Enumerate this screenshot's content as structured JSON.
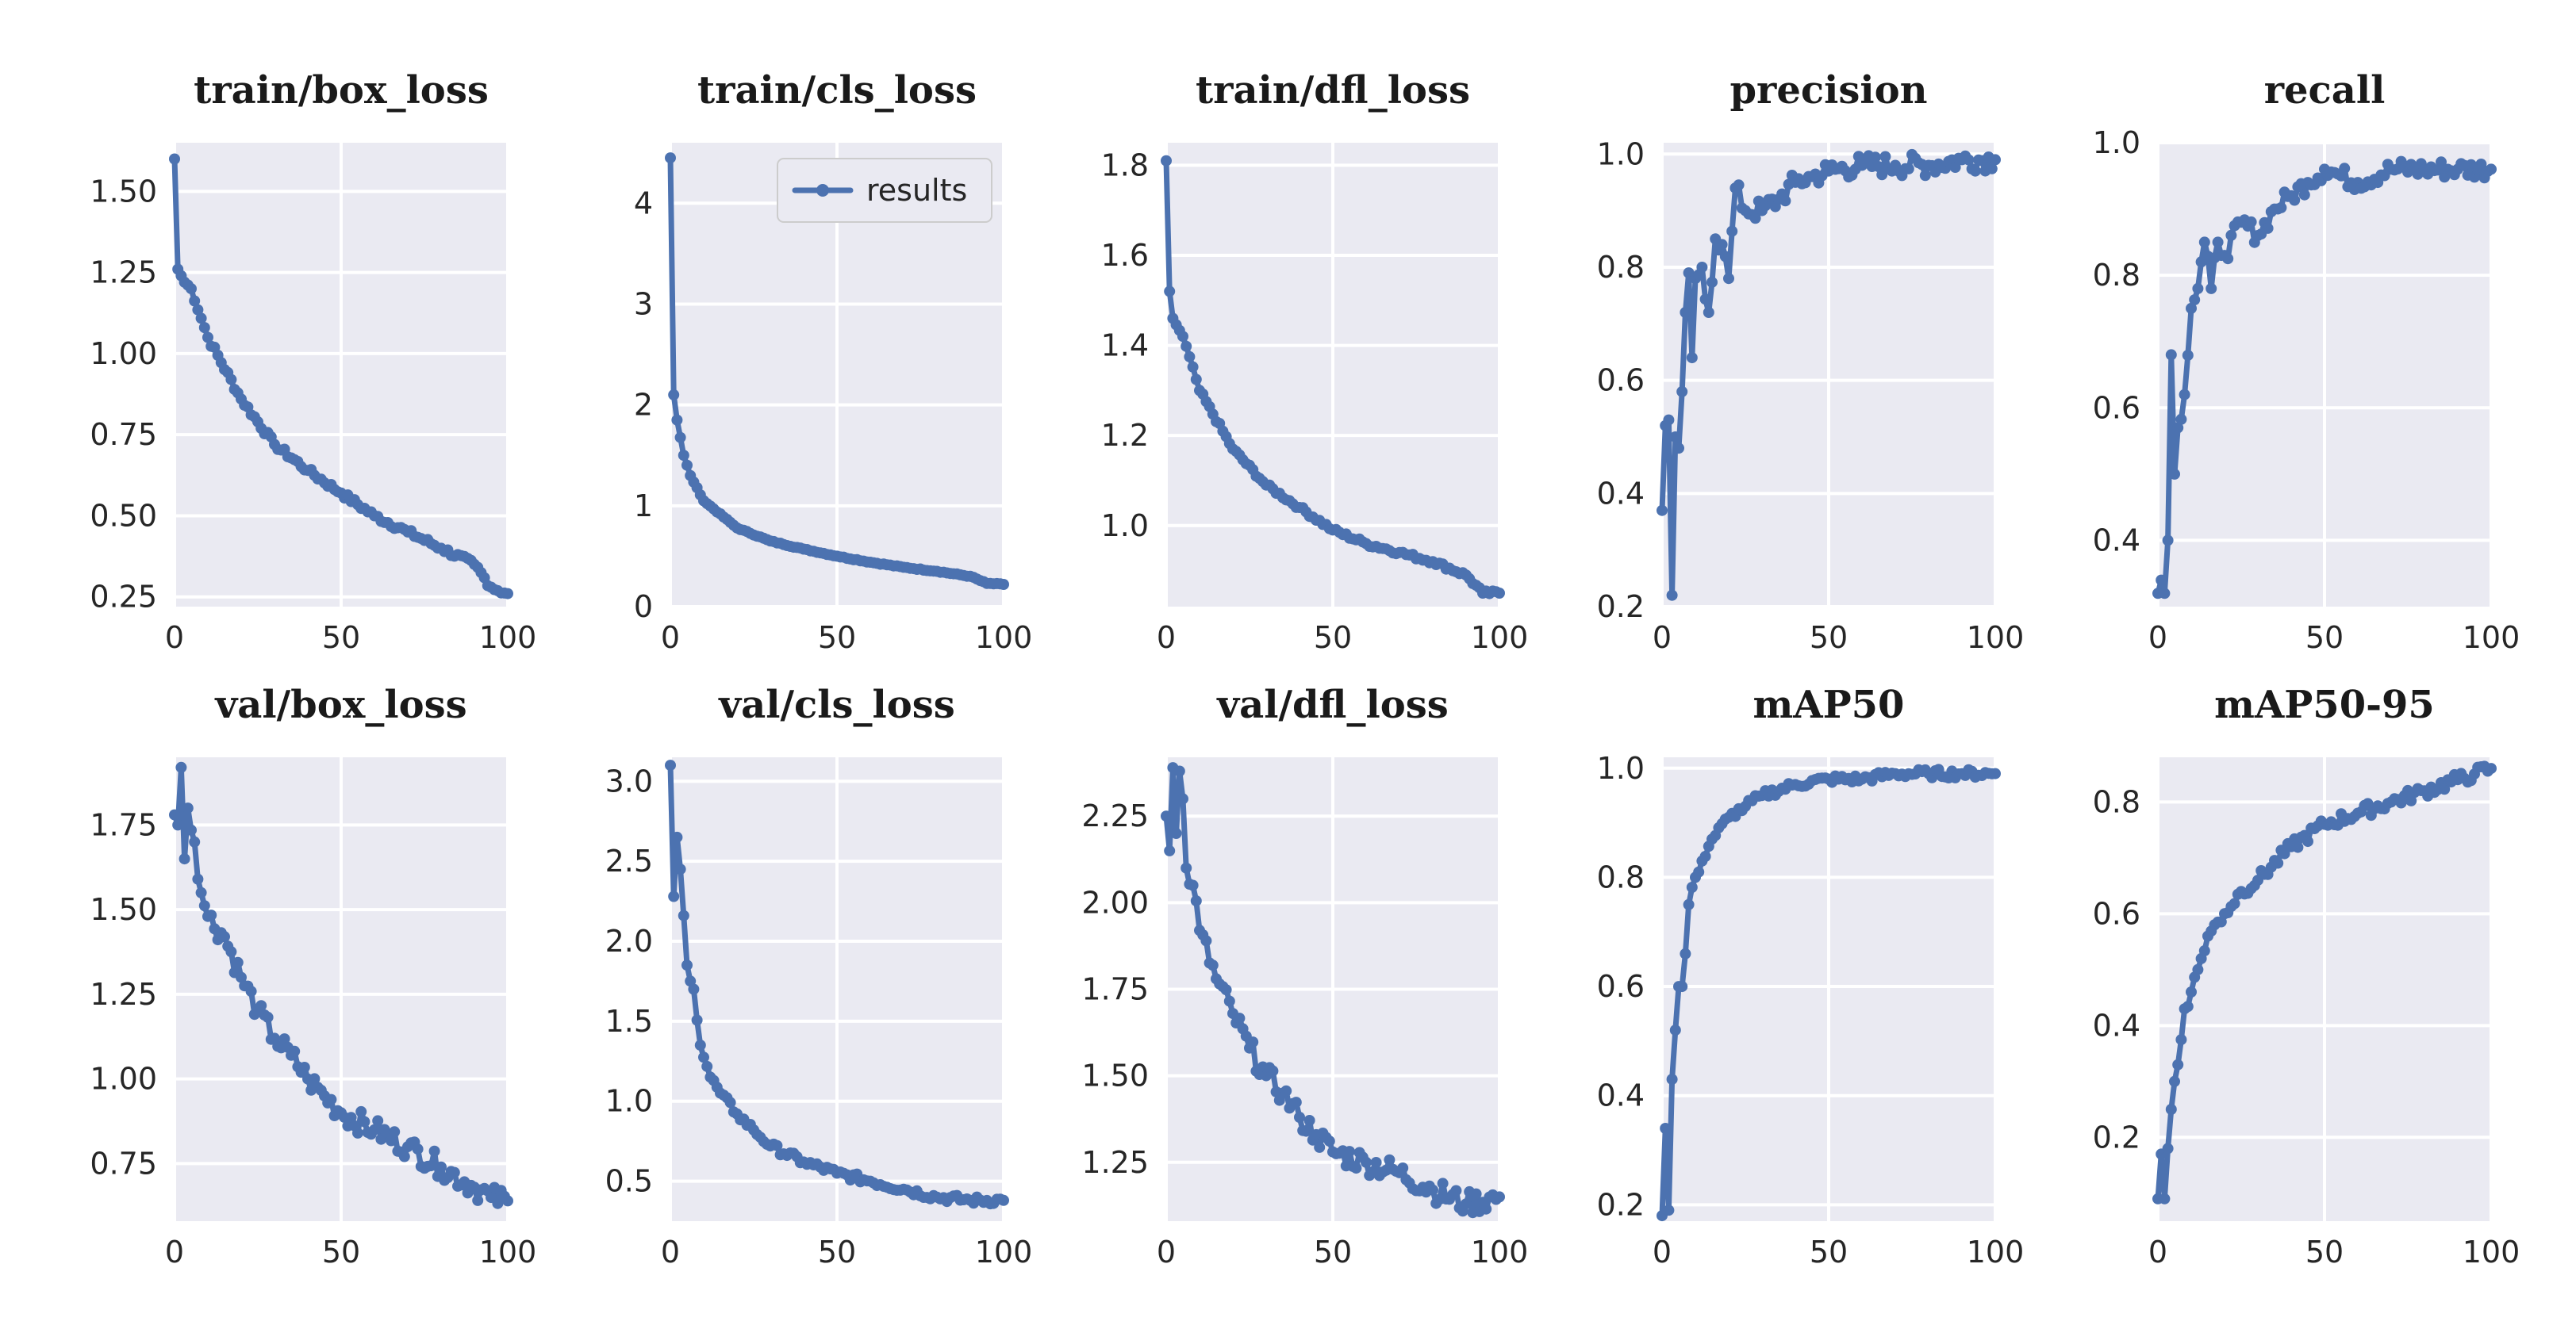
{
  "figure": {
    "legend_label": "results",
    "accent_color": "#4c72b0",
    "plot_background": "#eaeaf2"
  },
  "chart_data": [
    {
      "id": "train_box_loss",
      "type": "line",
      "title": "train/box_loss",
      "xlim": [
        0,
        100
      ],
      "ylim": [
        0.22,
        1.65
      ],
      "xticks": [
        0,
        50,
        100
      ],
      "xtick_labels": [
        "0",
        "50",
        "100"
      ],
      "yticks": [
        0.25,
        0.5,
        0.75,
        1.0,
        1.25,
        1.5
      ],
      "ytick_labels": [
        "0.25",
        "0.50",
        "0.75",
        "1.00",
        "1.25",
        "1.50"
      ],
      "kind": "decay",
      "start": 1.6,
      "end": 0.26,
      "knots": [
        [
          0,
          1.6
        ],
        [
          1,
          1.26
        ],
        [
          3,
          1.22
        ],
        [
          5,
          1.2
        ],
        [
          10,
          1.05
        ],
        [
          20,
          0.86
        ],
        [
          30,
          0.72
        ],
        [
          40,
          0.64
        ],
        [
          50,
          0.57
        ],
        [
          60,
          0.5
        ],
        [
          70,
          0.45
        ],
        [
          80,
          0.4
        ],
        [
          90,
          0.35
        ],
        [
          95,
          0.28
        ],
        [
          100,
          0.26
        ]
      ],
      "noise": 0.01
    },
    {
      "id": "train_cls_loss",
      "type": "line",
      "title": "train/cls_loss",
      "xlim": [
        0,
        100
      ],
      "ylim": [
        0,
        4.6
      ],
      "xticks": [
        0,
        50,
        100
      ],
      "xtick_labels": [
        "0",
        "50",
        "100"
      ],
      "yticks": [
        0,
        1,
        2,
        3,
        4
      ],
      "ytick_labels": [
        "0",
        "1",
        "2",
        "3",
        "4"
      ],
      "legend": {
        "entries": [
          "results"
        ],
        "position": "top-right"
      },
      "knots": [
        [
          0,
          4.45
        ],
        [
          1,
          2.1
        ],
        [
          2,
          1.85
        ],
        [
          4,
          1.5
        ],
        [
          6,
          1.3
        ],
        [
          10,
          1.05
        ],
        [
          20,
          0.78
        ],
        [
          30,
          0.65
        ],
        [
          40,
          0.57
        ],
        [
          50,
          0.5
        ],
        [
          60,
          0.44
        ],
        [
          70,
          0.39
        ],
        [
          80,
          0.35
        ],
        [
          90,
          0.3
        ],
        [
          95,
          0.23
        ],
        [
          100,
          0.22
        ]
      ],
      "noise": 0.005
    },
    {
      "id": "train_dfl_loss",
      "type": "line",
      "title": "train/dfl_loss",
      "xlim": [
        0,
        100
      ],
      "ylim": [
        0.82,
        1.85
      ],
      "xticks": [
        0,
        50,
        100
      ],
      "xtick_labels": [
        "0",
        "50",
        "100"
      ],
      "yticks": [
        1.0,
        1.2,
        1.4,
        1.6,
        1.8
      ],
      "ytick_labels": [
        "1.0",
        "1.2",
        "1.4",
        "1.6",
        "1.8"
      ],
      "knots": [
        [
          0,
          1.81
        ],
        [
          1,
          1.52
        ],
        [
          2,
          1.46
        ],
        [
          5,
          1.42
        ],
        [
          10,
          1.3
        ],
        [
          20,
          1.17
        ],
        [
          30,
          1.09
        ],
        [
          40,
          1.04
        ],
        [
          50,
          0.99
        ],
        [
          60,
          0.96
        ],
        [
          70,
          0.94
        ],
        [
          80,
          0.92
        ],
        [
          90,
          0.89
        ],
        [
          95,
          0.85
        ],
        [
          100,
          0.85
        ]
      ],
      "noise": 0.005
    },
    {
      "id": "precision",
      "type": "line",
      "title": "precision",
      "xlim": [
        0,
        100
      ],
      "ylim": [
        0.2,
        1.02
      ],
      "xticks": [
        0,
        50,
        100
      ],
      "xtick_labels": [
        "0",
        "50",
        "100"
      ],
      "yticks": [
        0.2,
        0.4,
        0.6,
        0.8,
        1.0
      ],
      "ytick_labels": [
        "0.2",
        "0.4",
        "0.6",
        "0.8",
        "1.0"
      ],
      "knots": [
        [
          0,
          0.37
        ],
        [
          1,
          0.52
        ],
        [
          2,
          0.53
        ],
        [
          3,
          0.22
        ],
        [
          4,
          0.5
        ],
        [
          5,
          0.48
        ],
        [
          6,
          0.58
        ],
        [
          7,
          0.72
        ],
        [
          8,
          0.79
        ],
        [
          9,
          0.64
        ],
        [
          10,
          0.78
        ],
        [
          12,
          0.8
        ],
        [
          14,
          0.72
        ],
        [
          16,
          0.85
        ],
        [
          18,
          0.84
        ],
        [
          20,
          0.78
        ],
        [
          22,
          0.94
        ],
        [
          25,
          0.9
        ],
        [
          30,
          0.9
        ],
        [
          35,
          0.92
        ],
        [
          40,
          0.95
        ],
        [
          45,
          0.96
        ],
        [
          50,
          0.97
        ],
        [
          60,
          0.98
        ],
        [
          70,
          0.98
        ],
        [
          80,
          0.98
        ],
        [
          90,
          0.99
        ],
        [
          100,
          0.99
        ]
      ],
      "noise": 0.02
    },
    {
      "id": "recall",
      "type": "line",
      "title": "recall",
      "xlim": [
        0,
        100
      ],
      "ylim": [
        0.3,
        1.0
      ],
      "xticks": [
        0,
        50,
        100
      ],
      "xtick_labels": [
        "0",
        "50",
        "100"
      ],
      "yticks": [
        0.4,
        0.6,
        0.8,
        1.0
      ],
      "ytick_labels": [
        "0.4",
        "0.6",
        "0.8",
        "1.0"
      ],
      "knots": [
        [
          0,
          0.32
        ],
        [
          1,
          0.34
        ],
        [
          2,
          0.32
        ],
        [
          3,
          0.4
        ],
        [
          4,
          0.68
        ],
        [
          5,
          0.5
        ],
        [
          6,
          0.57
        ],
        [
          8,
          0.62
        ],
        [
          10,
          0.75
        ],
        [
          12,
          0.78
        ],
        [
          14,
          0.85
        ],
        [
          16,
          0.78
        ],
        [
          18,
          0.85
        ],
        [
          20,
          0.83
        ],
        [
          25,
          0.88
        ],
        [
          30,
          0.86
        ],
        [
          35,
          0.9
        ],
        [
          40,
          0.92
        ],
        [
          45,
          0.94
        ],
        [
          50,
          0.96
        ],
        [
          55,
          0.95
        ],
        [
          60,
          0.94
        ],
        [
          70,
          0.96
        ],
        [
          80,
          0.96
        ],
        [
          90,
          0.96
        ],
        [
          100,
          0.96
        ]
      ],
      "noise": 0.015
    },
    {
      "id": "val_box_loss",
      "type": "line",
      "title": "val/box_loss",
      "xlim": [
        0,
        100
      ],
      "ylim": [
        0.58,
        1.95
      ],
      "xticks": [
        0,
        50,
        100
      ],
      "xtick_labels": [
        "0",
        "50",
        "100"
      ],
      "yticks": [
        0.75,
        1.0,
        1.25,
        1.5,
        1.75
      ],
      "ytick_labels": [
        "0.75",
        "1.00",
        "1.25",
        "1.50",
        "1.75"
      ],
      "knots": [
        [
          0,
          1.78
        ],
        [
          1,
          1.75
        ],
        [
          2,
          1.92
        ],
        [
          3,
          1.65
        ],
        [
          4,
          1.8
        ],
        [
          6,
          1.7
        ],
        [
          8,
          1.55
        ],
        [
          10,
          1.48
        ],
        [
          15,
          1.42
        ],
        [
          20,
          1.3
        ],
        [
          25,
          1.2
        ],
        [
          30,
          1.12
        ],
        [
          35,
          1.07
        ],
        [
          40,
          1.0
        ],
        [
          45,
          0.95
        ],
        [
          50,
          0.9
        ],
        [
          60,
          0.85
        ],
        [
          70,
          0.8
        ],
        [
          80,
          0.74
        ],
        [
          90,
          0.68
        ],
        [
          95,
          0.65
        ],
        [
          100,
          0.64
        ]
      ],
      "noise": 0.035
    },
    {
      "id": "val_cls_loss",
      "type": "line",
      "title": "val/cls_loss",
      "xlim": [
        0,
        100
      ],
      "ylim": [
        0.25,
        3.15
      ],
      "xticks": [
        0,
        50,
        100
      ],
      "xtick_labels": [
        "0",
        "50",
        "100"
      ],
      "yticks": [
        0.5,
        1.0,
        1.5,
        2.0,
        2.5,
        3.0
      ],
      "ytick_labels": [
        "0.5",
        "1.0",
        "1.5",
        "2.0",
        "2.5",
        "3.0"
      ],
      "knots": [
        [
          0,
          3.1
        ],
        [
          1,
          2.28
        ],
        [
          2,
          2.65
        ],
        [
          3,
          2.45
        ],
        [
          5,
          1.85
        ],
        [
          7,
          1.7
        ],
        [
          9,
          1.35
        ],
        [
          12,
          1.15
        ],
        [
          15,
          1.05
        ],
        [
          20,
          0.92
        ],
        [
          25,
          0.82
        ],
        [
          30,
          0.72
        ],
        [
          40,
          0.62
        ],
        [
          50,
          0.55
        ],
        [
          60,
          0.5
        ],
        [
          70,
          0.45
        ],
        [
          80,
          0.4
        ],
        [
          90,
          0.38
        ],
        [
          100,
          0.38
        ]
      ],
      "noise": 0.025
    },
    {
      "id": "val_dfl_loss",
      "type": "line",
      "title": "val/dfl_loss",
      "xlim": [
        0,
        100
      ],
      "ylim": [
        1.08,
        2.42
      ],
      "xticks": [
        0,
        50,
        100
      ],
      "xtick_labels": [
        "0",
        "50",
        "100"
      ],
      "yticks": [
        1.25,
        1.5,
        1.75,
        2.0,
        2.25
      ],
      "ytick_labels": [
        "1.25",
        "1.50",
        "1.75",
        "2.00",
        "2.25"
      ],
      "knots": [
        [
          0,
          2.25
        ],
        [
          1,
          2.15
        ],
        [
          2,
          2.39
        ],
        [
          3,
          2.2
        ],
        [
          4,
          2.38
        ],
        [
          5,
          2.3
        ],
        [
          6,
          2.1
        ],
        [
          8,
          2.05
        ],
        [
          10,
          1.92
        ],
        [
          15,
          1.78
        ],
        [
          20,
          1.68
        ],
        [
          25,
          1.58
        ],
        [
          30,
          1.5
        ],
        [
          35,
          1.45
        ],
        [
          40,
          1.38
        ],
        [
          45,
          1.33
        ],
        [
          50,
          1.28
        ],
        [
          60,
          1.25
        ],
        [
          70,
          1.22
        ],
        [
          80,
          1.17
        ],
        [
          90,
          1.13
        ],
        [
          100,
          1.15
        ]
      ],
      "noise": 0.035
    },
    {
      "id": "mAP50",
      "type": "line",
      "title": "mAP50",
      "xlim": [
        0,
        100
      ],
      "ylim": [
        0.17,
        1.02
      ],
      "xticks": [
        0,
        50,
        100
      ],
      "xtick_labels": [
        "0",
        "50",
        "100"
      ],
      "yticks": [
        0.2,
        0.4,
        0.6,
        0.8,
        1.0
      ],
      "ytick_labels": [
        "0.2",
        "0.4",
        "0.6",
        "0.8",
        "1.0"
      ],
      "knots": [
        [
          0,
          0.18
        ],
        [
          1,
          0.34
        ],
        [
          2,
          0.19
        ],
        [
          3,
          0.43
        ],
        [
          4,
          0.52
        ],
        [
          5,
          0.6
        ],
        [
          6,
          0.6
        ],
        [
          7,
          0.66
        ],
        [
          8,
          0.75
        ],
        [
          10,
          0.8
        ],
        [
          12,
          0.83
        ],
        [
          15,
          0.87
        ],
        [
          20,
          0.91
        ],
        [
          25,
          0.93
        ],
        [
          30,
          0.95
        ],
        [
          40,
          0.97
        ],
        [
          50,
          0.98
        ],
        [
          60,
          0.98
        ],
        [
          70,
          0.99
        ],
        [
          80,
          0.99
        ],
        [
          90,
          0.99
        ],
        [
          100,
          0.99
        ]
      ],
      "noise": 0.008
    },
    {
      "id": "mAP50_95",
      "type": "line",
      "title": "mAP50-95",
      "xlim": [
        0,
        100
      ],
      "ylim": [
        0.05,
        0.88
      ],
      "xticks": [
        0,
        50,
        100
      ],
      "xtick_labels": [
        "0",
        "50",
        "100"
      ],
      "yticks": [
        0.2,
        0.4,
        0.6,
        0.8
      ],
      "ytick_labels": [
        "0.2",
        "0.4",
        "0.6",
        "0.8"
      ],
      "knots": [
        [
          0,
          0.09
        ],
        [
          1,
          0.17
        ],
        [
          2,
          0.09
        ],
        [
          3,
          0.18
        ],
        [
          4,
          0.25
        ],
        [
          5,
          0.3
        ],
        [
          6,
          0.33
        ],
        [
          8,
          0.43
        ],
        [
          10,
          0.46
        ],
        [
          12,
          0.5
        ],
        [
          15,
          0.56
        ],
        [
          20,
          0.6
        ],
        [
          25,
          0.64
        ],
        [
          30,
          0.66
        ],
        [
          40,
          0.72
        ],
        [
          50,
          0.76
        ],
        [
          60,
          0.78
        ],
        [
          70,
          0.8
        ],
        [
          80,
          0.82
        ],
        [
          90,
          0.84
        ],
        [
          95,
          0.85
        ],
        [
          100,
          0.86
        ]
      ],
      "noise": 0.012
    }
  ]
}
